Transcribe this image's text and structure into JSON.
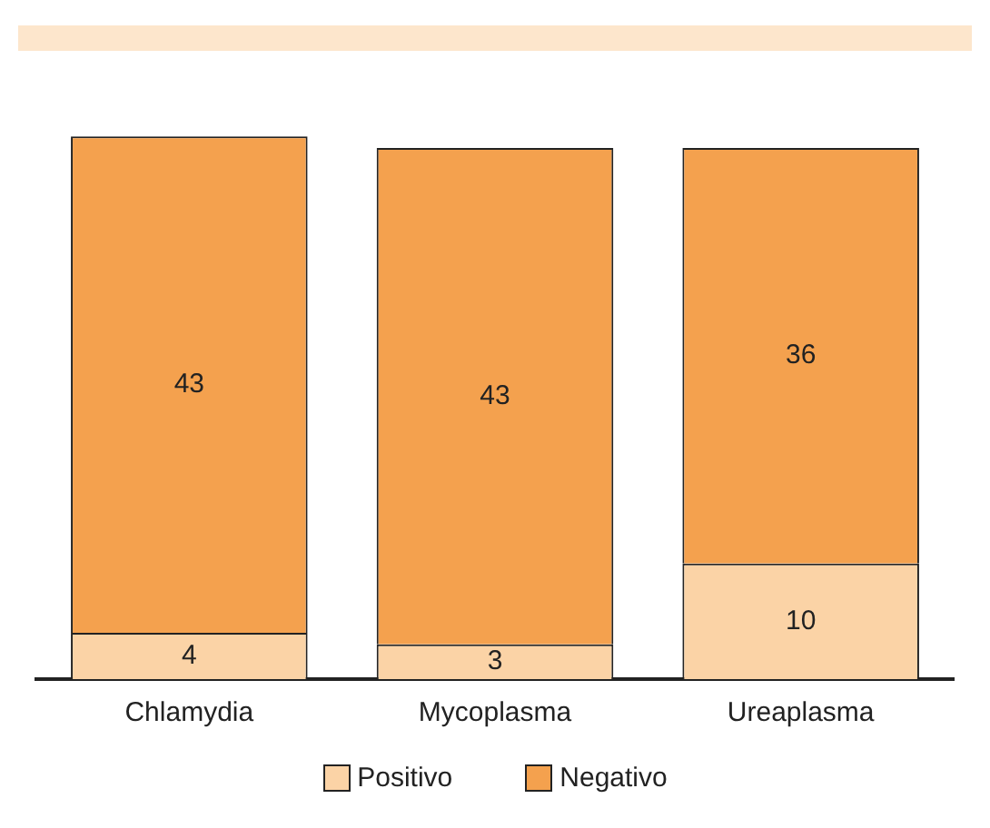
{
  "chart_data": {
    "type": "bar",
    "stacked": true,
    "data_labels": true,
    "legend": "bottom",
    "grid": false,
    "categories": [
      "Chlamydia",
      "Mycoplasma",
      "Ureaplasma"
    ],
    "series": [
      {
        "name": "Positivo",
        "color": "#fbd3a6",
        "values": [
          4,
          3,
          10
        ]
      },
      {
        "name": "Negativo",
        "color": "#f4a14e",
        "values": [
          43,
          43,
          36
        ]
      }
    ]
  }
}
